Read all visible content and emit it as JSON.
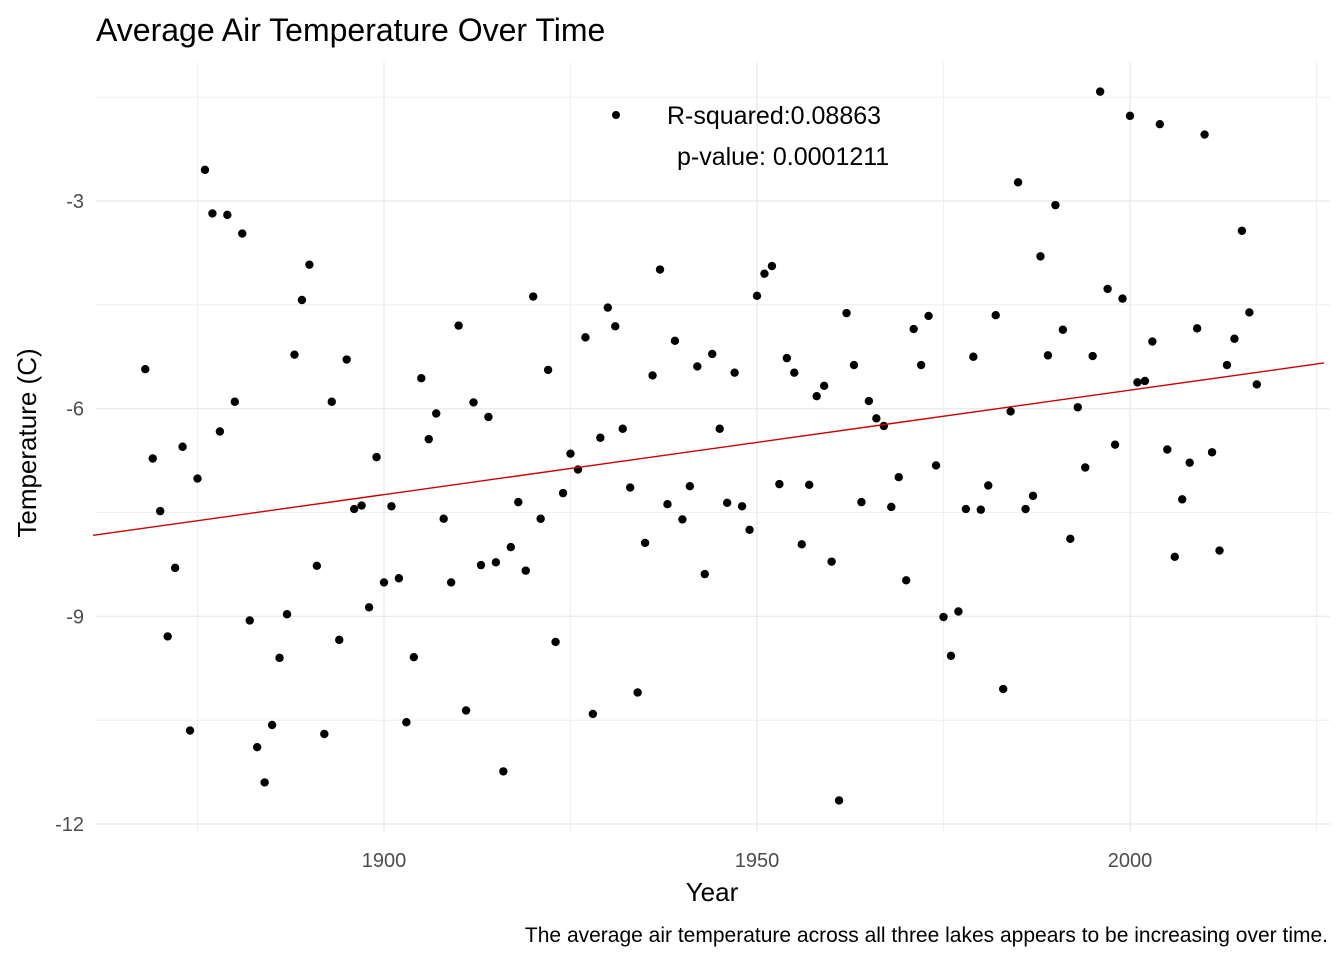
{
  "chart_data": {
    "type": "scatter",
    "title": "Average Air Temperature Over Time",
    "xlabel": "Year",
    "ylabel": "Temperature (C)",
    "caption": "The average air temperature across all three lakes appears to be increasing over time.",
    "xlim": [
      1861,
      2026
    ],
    "ylim": [
      -12.0,
      -1.2
    ],
    "x_ticks": [
      1900,
      1950,
      2000
    ],
    "y_ticks": [
      -12,
      -9,
      -6,
      -3
    ],
    "grid": true,
    "legend": {
      "line1": "R-squared:0.08863",
      "line2": "p-value: 0.0001211"
    },
    "colors": {
      "points": "#000000",
      "trend": "#cc0000",
      "grid": "#ebebeb"
    },
    "trend_line": {
      "x": [
        1861,
        2026
      ],
      "y": [
        -7.83,
        -5.34
      ]
    },
    "points": [
      [
        1868,
        -5.43
      ],
      [
        1869,
        -6.72
      ],
      [
        1870,
        -7.48
      ],
      [
        1871,
        -9.29
      ],
      [
        1872,
        -8.3
      ],
      [
        1873,
        -6.55
      ],
      [
        1874,
        -10.65
      ],
      [
        1875,
        -7.01
      ],
      [
        1876,
        -2.55
      ],
      [
        1877,
        -3.18
      ],
      [
        1878,
        -6.33
      ],
      [
        1879,
        -3.2
      ],
      [
        1880,
        -5.9
      ],
      [
        1881,
        -3.47
      ],
      [
        1882,
        -9.06
      ],
      [
        1883,
        -10.89
      ],
      [
        1884,
        -11.4
      ],
      [
        1885,
        -10.57
      ],
      [
        1886,
        -9.6
      ],
      [
        1887,
        -8.97
      ],
      [
        1888,
        -5.22
      ],
      [
        1889,
        -4.43
      ],
      [
        1890,
        -3.92
      ],
      [
        1891,
        -8.27
      ],
      [
        1892,
        -10.7
      ],
      [
        1893,
        -5.9
      ],
      [
        1894,
        -9.34
      ],
      [
        1895,
        -5.29
      ],
      [
        1896,
        -7.45
      ],
      [
        1897,
        -7.4
      ],
      [
        1898,
        -8.87
      ],
      [
        1899,
        -6.7
      ],
      [
        1900,
        -8.51
      ],
      [
        1901,
        -7.41
      ],
      [
        1902,
        -8.45
      ],
      [
        1903,
        -10.53
      ],
      [
        1904,
        -9.59
      ],
      [
        1905,
        -5.56
      ],
      [
        1906,
        -6.44
      ],
      [
        1907,
        -6.07
      ],
      [
        1908,
        -7.59
      ],
      [
        1909,
        -8.51
      ],
      [
        1910,
        -4.8
      ],
      [
        1911,
        -10.36
      ],
      [
        1912,
        -5.91
      ],
      [
        1913,
        -8.26
      ],
      [
        1914,
        -6.12
      ],
      [
        1915,
        -8.22
      ],
      [
        1916,
        -11.24
      ],
      [
        1917,
        -8.0
      ],
      [
        1918,
        -7.35
      ],
      [
        1919,
        -8.34
      ],
      [
        1920,
        -4.38
      ],
      [
        1921,
        -7.59
      ],
      [
        1922,
        -5.44
      ],
      [
        1923,
        -9.37
      ],
      [
        1924,
        -7.22
      ],
      [
        1925,
        -6.65
      ],
      [
        1926,
        -6.88
      ],
      [
        1927,
        -4.97
      ],
      [
        1928,
        -10.41
      ],
      [
        1929,
        -6.42
      ],
      [
        1930,
        -4.54
      ],
      [
        1931,
        -4.81
      ],
      [
        1932,
        -6.29
      ],
      [
        1933,
        -7.14
      ],
      [
        1934,
        -10.1
      ],
      [
        1935,
        -7.94
      ],
      [
        1936,
        -5.52
      ],
      [
        1937,
        -3.99
      ],
      [
        1938,
        -7.38
      ],
      [
        1939,
        -5.02
      ],
      [
        1940,
        -7.6
      ],
      [
        1941,
        -7.12
      ],
      [
        1942,
        -5.39
      ],
      [
        1943,
        -8.39
      ],
      [
        1944,
        -5.21
      ],
      [
        1945,
        -6.29
      ],
      [
        1946,
        -7.36
      ],
      [
        1947,
        -5.48
      ],
      [
        1948,
        -7.41
      ],
      [
        1949,
        -7.75
      ],
      [
        1950,
        -4.37
      ],
      [
        1951,
        -4.05
      ],
      [
        1952,
        -3.94
      ],
      [
        1953,
        -7.09
      ],
      [
        1954,
        -5.27
      ],
      [
        1955,
        -5.48
      ],
      [
        1956,
        -7.96
      ],
      [
        1957,
        -7.1
      ],
      [
        1958,
        -5.82
      ],
      [
        1959,
        -5.67
      ],
      [
        1960,
        -8.21
      ],
      [
        1961,
        -11.66
      ],
      [
        1962,
        -4.62
      ],
      [
        1963,
        -5.37
      ],
      [
        1964,
        -7.35
      ],
      [
        1965,
        -5.89
      ],
      [
        1966,
        -6.14
      ],
      [
        1967,
        -6.25
      ],
      [
        1968,
        -7.42
      ],
      [
        1969,
        -6.99
      ],
      [
        1970,
        -8.48
      ],
      [
        1971,
        -4.85
      ],
      [
        1972,
        -5.37
      ],
      [
        1973,
        -4.66
      ],
      [
        1974,
        -6.82
      ],
      [
        1975,
        -9.01
      ],
      [
        1976,
        -9.57
      ],
      [
        1977,
        -8.93
      ],
      [
        1978,
        -7.45
      ],
      [
        1979,
        -5.25
      ],
      [
        1980,
        -7.46
      ],
      [
        1981,
        -7.11
      ],
      [
        1982,
        -4.65
      ],
      [
        1983,
        -10.05
      ],
      [
        1984,
        -6.04
      ],
      [
        1985,
        -2.73
      ],
      [
        1986,
        -7.45
      ],
      [
        1987,
        -7.26
      ],
      [
        1988,
        -3.8
      ],
      [
        1989,
        -5.23
      ],
      [
        1990,
        -3.06
      ],
      [
        1991,
        -4.86
      ],
      [
        1992,
        -7.88
      ],
      [
        1993,
        -5.98
      ],
      [
        1994,
        -6.85
      ],
      [
        1995,
        -5.24
      ],
      [
        1996,
        -1.42
      ],
      [
        1997,
        -4.27
      ],
      [
        1998,
        -6.52
      ],
      [
        1999,
        -4.41
      ],
      [
        2000,
        -1.77
      ],
      [
        2001,
        -5.62
      ],
      [
        2002,
        -5.6
      ],
      [
        2003,
        -5.03
      ],
      [
        2004,
        -1.89
      ],
      [
        2005,
        -6.59
      ],
      [
        2006,
        -8.14
      ],
      [
        2007,
        -7.31
      ],
      [
        2008,
        -6.78
      ],
      [
        2009,
        -4.84
      ],
      [
        2010,
        -2.04
      ],
      [
        2011,
        -6.63
      ],
      [
        2012,
        -8.05
      ],
      [
        2013,
        -5.37
      ],
      [
        2014,
        -4.99
      ],
      [
        2015,
        -3.43
      ],
      [
        2016,
        -4.61
      ],
      [
        2017,
        -5.65
      ]
    ]
  }
}
